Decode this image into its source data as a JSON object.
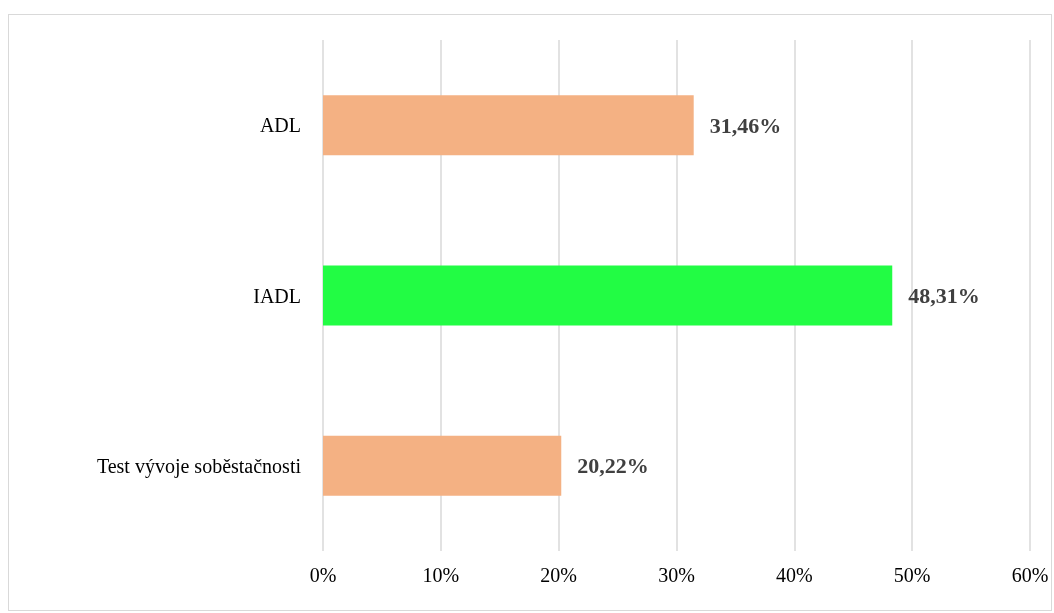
{
  "chart_data": {
    "type": "bar",
    "orientation": "horizontal",
    "categories": [
      "ADL",
      "IADL",
      "Test vývoje soběstačnosti"
    ],
    "values": [
      31.46,
      48.31,
      20.22
    ],
    "colors": [
      "#f4b183",
      "#22fc44",
      "#f4b183"
    ],
    "value_labels": [
      "31,46%",
      "48,31%",
      "20,22%"
    ],
    "xlim": [
      0,
      60
    ],
    "xticks": [
      {
        "value": 0,
        "label": "0%"
      },
      {
        "value": 10,
        "label": "10%"
      },
      {
        "value": 20,
        "label": "20%"
      },
      {
        "value": 30,
        "label": "30%"
      },
      {
        "value": 40,
        "label": "40%"
      },
      {
        "value": 50,
        "label": "50%"
      },
      {
        "value": 60,
        "label": "60%"
      }
    ],
    "grid": "x"
  }
}
